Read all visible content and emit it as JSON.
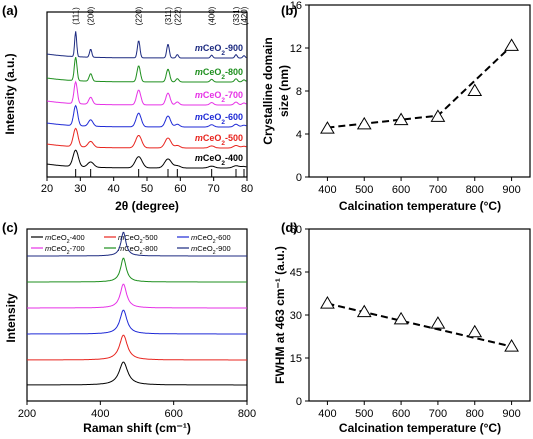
{
  "chart_data": [
    {
      "panel": "(a)",
      "type": "line",
      "xlabel": "2θ (degree)",
      "ylabel": "Intensity (a.u.)",
      "xlim": [
        20,
        80
      ],
      "x_ticks": [
        20,
        30,
        40,
        50,
        60,
        70,
        80
      ],
      "peak_labels": [
        {
          "text": "(111)",
          "x": 28.6
        },
        {
          "text": "(200)",
          "x": 33.1
        },
        {
          "text": "(220)",
          "x": 47.5
        },
        {
          "text": "(311)",
          "x": 56.3
        },
        {
          "text": "(222)",
          "x": 59.1
        },
        {
          "text": "(400)",
          "x": 69.4
        },
        {
          "text": "(331)",
          "x": 76.7
        },
        {
          "text": "(420)",
          "x": 79.1
        }
      ],
      "series": [
        {
          "name": "mCeO₂-400",
          "color": "#000000"
        },
        {
          "name": "mCeO₂-500",
          "color": "#e8251f"
        },
        {
          "name": "mCeO₂-600",
          "color": "#1f2ad6"
        },
        {
          "name": "mCeO₂-700",
          "color": "#e632e6"
        },
        {
          "name": "mCeO₂-800",
          "color": "#1e8f1e"
        },
        {
          "name": "mCeO₂-900",
          "color": "#1c2a80"
        }
      ]
    },
    {
      "panel": "(b)",
      "type": "scatter",
      "xlabel": "Calcination temperature (°C)",
      "ylabel": "Crystalline domain size (nm)",
      "xlim": [
        350,
        950
      ],
      "ylim": [
        0,
        16
      ],
      "x_ticks": [
        400,
        500,
        600,
        700,
        800,
        900
      ],
      "y_ticks": [
        0,
        4,
        8,
        12,
        16
      ],
      "x": [
        400,
        500,
        600,
        700,
        800,
        900
      ],
      "y": [
        4.5,
        4.9,
        5.3,
        5.6,
        8.0,
        12.2
      ],
      "trend": "dashed"
    },
    {
      "panel": "(c)",
      "type": "line",
      "xlabel": "Raman shift (cm⁻¹)",
      "ylabel": "Intensity",
      "xlim": [
        200,
        800
      ],
      "x_ticks": [
        200,
        400,
        600,
        800
      ],
      "peak_position": 463,
      "series": [
        {
          "name": "mCeO₂-400",
          "color": "#000000"
        },
        {
          "name": "mCeO₂-500",
          "color": "#e8251f"
        },
        {
          "name": "mCeO₂-600",
          "color": "#1f2ad6"
        },
        {
          "name": "mCeO₂-700",
          "color": "#e632e6"
        },
        {
          "name": "mCeO₂-800",
          "color": "#1e8f1e"
        },
        {
          "name": "mCeO₂-900",
          "color": "#1c2a80"
        }
      ]
    },
    {
      "panel": "(d)",
      "type": "scatter",
      "xlabel": "Calcination temperature (°C)",
      "ylabel": "FWHM at 463 cm⁻¹ (a.u.)",
      "xlim": [
        350,
        950
      ],
      "ylim": [
        0,
        60
      ],
      "x_ticks": [
        400,
        500,
        600,
        700,
        800,
        900
      ],
      "y_ticks": [
        0,
        15,
        30,
        45,
        60
      ],
      "x": [
        400,
        500,
        600,
        700,
        800,
        900
      ],
      "y": [
        34,
        31,
        28.5,
        27,
        24,
        19
      ],
      "trend": "dashed"
    }
  ]
}
